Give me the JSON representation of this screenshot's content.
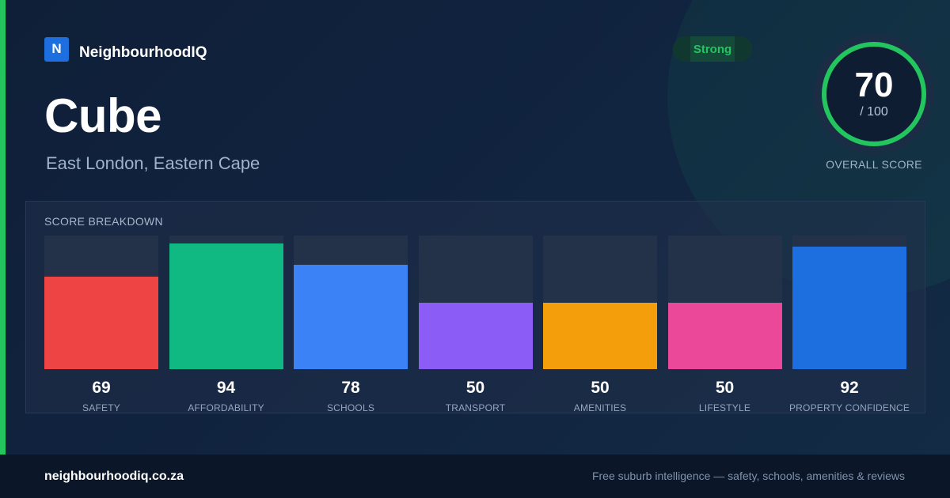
{
  "brand": {
    "logo_letter": "N",
    "name": "NeighbourhoodIQ"
  },
  "suburb": {
    "name": "Cube",
    "location": "East London, Eastern Cape"
  },
  "badge": {
    "label": "Strong",
    "color": "#22c55e"
  },
  "overall": {
    "score": "70",
    "max": "/ 100",
    "fraction": 0.7,
    "label": "OVERALL SCORE",
    "color": "#22c55e"
  },
  "breakdown": {
    "title": "SCORE BREAKDOWN",
    "items": [
      {
        "label": "SAFETY",
        "value": "69",
        "color": "#ef4444"
      },
      {
        "label": "AFFORDABILITY",
        "value": "94",
        "color": "#10b981"
      },
      {
        "label": "SCHOOLS",
        "value": "78",
        "color": "#3b82f6"
      },
      {
        "label": "TRANSPORT",
        "value": "50",
        "color": "#8b5cf6"
      },
      {
        "label": "AMENITIES",
        "value": "50",
        "color": "#f59e0b"
      },
      {
        "label": "LIFESTYLE",
        "value": "50",
        "color": "#ec4899"
      },
      {
        "label": "PROPERTY CONFIDENCE",
        "value": "92",
        "color": "#1d6fe0"
      }
    ]
  },
  "footer": {
    "domain": "neighbourhoodiq.co.za",
    "tagline": "Free suburb intelligence — safety, schools, amenities & reviews"
  }
}
